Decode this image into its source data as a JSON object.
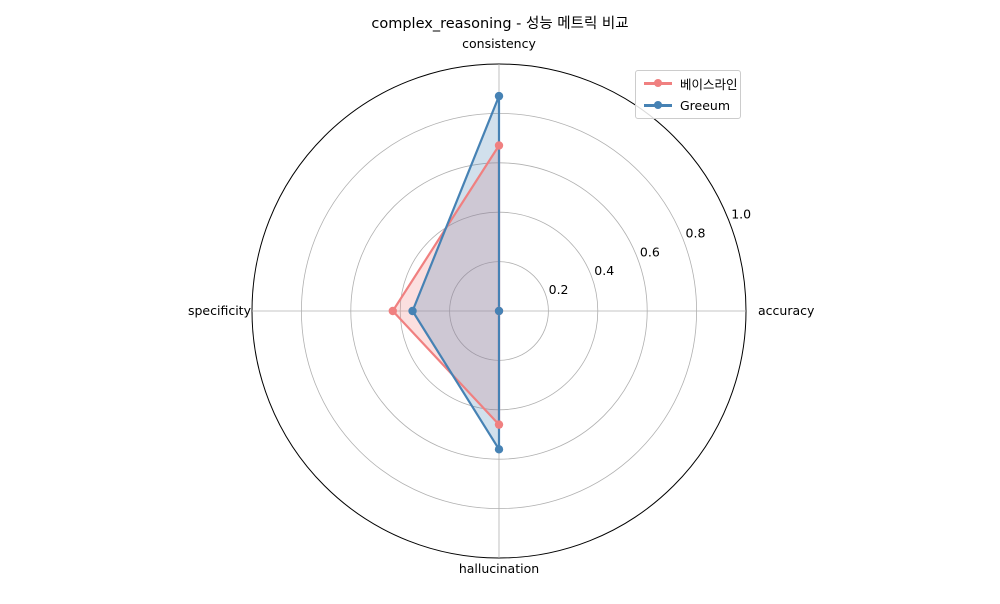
{
  "chart_data": {
    "type": "radar",
    "title": "complex_reasoning - 성능 메트릭 비교",
    "axes": [
      "accuracy",
      "consistency",
      "specificity",
      "hallucination"
    ],
    "rlim": [
      0,
      1.0
    ],
    "rticks": [
      0.2,
      0.4,
      0.6,
      0.8,
      1.0
    ],
    "rtick_labels": [
      "0.2",
      "0.4",
      "0.6",
      "0.8",
      "1.0"
    ],
    "grid": true,
    "legend_position": "top-right",
    "series": [
      {
        "name": "베이스라인",
        "color": "#f08080",
        "values": [
          0.0,
          0.67,
          0.43,
          0.46
        ]
      },
      {
        "name": "Greeum",
        "color": "#4682b4",
        "values": [
          0.0,
          0.87,
          0.35,
          0.56
        ]
      }
    ]
  }
}
